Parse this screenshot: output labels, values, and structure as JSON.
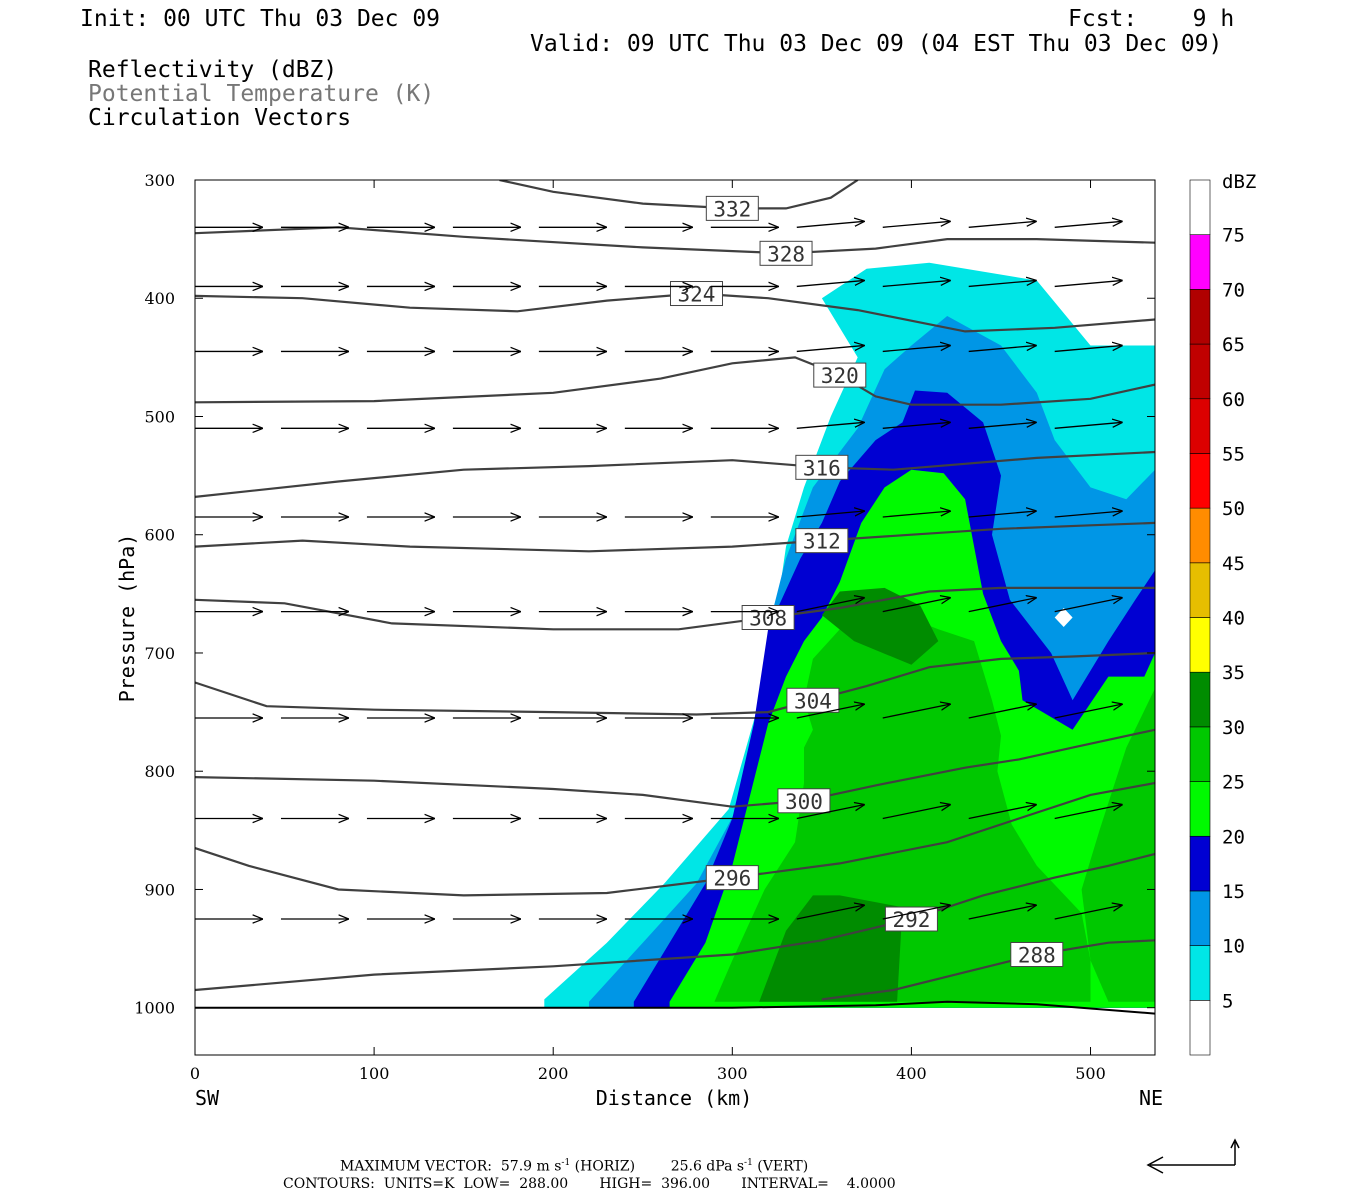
{
  "header": {
    "init": "Init: 00 UTC Thu 03 Dec 09",
    "fcst": "Fcst:    9 h",
    "valid": "Valid: 09 UTC Thu 03 Dec 09 (04 EST Thu 03 Dec 09)",
    "field1": "Reflectivity (dBZ)",
    "field2": "Potential Temperature (K)",
    "field3": "Circulation Vectors"
  },
  "footer": {
    "line1_a": "MAXIMUM VECTOR:  57.9 m s",
    "line1_b": "(HORIZ)",
    "line1_c": "25.6 dPa s",
    "line1_d": "(VERT)",
    "line1_exp": "-1",
    "line2": "CONTOURS:  UNITS=K  LOW=  288.00       HIGH=  396.00       INTERVAL=    4.0000"
  },
  "colors": {
    "c5": "#00e6e6",
    "c10": "#0096e6",
    "c15": "#0000d2",
    "c20": "#00fa00",
    "c25": "#00c800",
    "c30": "#008c00",
    "c35": "#ffff00",
    "c40": "#e6be00",
    "c45": "#ff8c00",
    "c50": "#ff0000",
    "c55": "#dc0000",
    "c60": "#c00000",
    "c65": "#b00000",
    "c70": "#ff00ff",
    "c75": "#9b59c7",
    "theta_line": "#404040",
    "vector": "#000000"
  },
  "chart_data": {
    "type": "heatmap",
    "title": "",
    "xlabel": "Distance (km)",
    "ylabel": "Pressure (hPa)",
    "xlim": [
      0,
      536
    ],
    "ylim": [
      1040,
      300
    ],
    "x_ticks": [
      0,
      100,
      200,
      300,
      400,
      500
    ],
    "y_ticks": [
      300,
      400,
      500,
      600,
      700,
      800,
      900,
      1000
    ],
    "x_end_labels": {
      "left": "SW",
      "right": "NE"
    },
    "colorbar": {
      "unit": "dBZ",
      "levels": [
        5,
        10,
        15,
        20,
        25,
        30,
        35,
        40,
        45,
        50,
        55,
        60,
        65,
        70,
        75
      ]
    },
    "reflectivity_regions": [
      {
        "dbz": 5,
        "polygon": [
          [
            195,
            993
          ],
          [
            230,
            945
          ],
          [
            262,
            895
          ],
          [
            298,
            832
          ],
          [
            318,
            725
          ],
          [
            325,
            662
          ],
          [
            330,
            610
          ],
          [
            340,
            560
          ],
          [
            355,
            500
          ],
          [
            370,
            450
          ],
          [
            350,
            400
          ],
          [
            375,
            375
          ],
          [
            410,
            370
          ],
          [
            470,
            385
          ],
          [
            500,
            440
          ],
          [
            536,
            440
          ],
          [
            536,
            1000
          ],
          [
            195,
            1000
          ]
        ]
      },
      {
        "dbz": 10,
        "polygon": [
          [
            220,
            995
          ],
          [
            250,
            945
          ],
          [
            280,
            895
          ],
          [
            305,
            825
          ],
          [
            318,
            740
          ],
          [
            320,
            680
          ],
          [
            330,
            620
          ],
          [
            345,
            560
          ],
          [
            370,
            510
          ],
          [
            385,
            460
          ],
          [
            400,
            440
          ],
          [
            420,
            415
          ],
          [
            450,
            440
          ],
          [
            470,
            480
          ],
          [
            480,
            520
          ],
          [
            500,
            560
          ],
          [
            520,
            570
          ],
          [
            536,
            545
          ],
          [
            536,
            1000
          ],
          [
            220,
            1000
          ]
        ]
      },
      {
        "dbz": 10,
        "polygon": [
          [
            495,
            680
          ],
          [
            478,
            635
          ],
          [
            470,
            605
          ],
          [
            490,
            590
          ],
          [
            510,
            600
          ],
          [
            518,
            620
          ],
          [
            510,
            660
          ]
        ]
      },
      {
        "dbz": 15,
        "polygon": [
          [
            245,
            995
          ],
          [
            265,
            945
          ],
          [
            285,
            895
          ],
          [
            300,
            840
          ],
          [
            312,
            760
          ],
          [
            320,
            680
          ],
          [
            338,
            620
          ],
          [
            350,
            590
          ],
          [
            360,
            555
          ],
          [
            380,
            520
          ],
          [
            395,
            505
          ],
          [
            402,
            478
          ],
          [
            420,
            480
          ],
          [
            440,
            505
          ],
          [
            450,
            550
          ],
          [
            445,
            600
          ],
          [
            455,
            655
          ],
          [
            478,
            700
          ],
          [
            490,
            740
          ],
          [
            510,
            690
          ],
          [
            525,
            655
          ],
          [
            536,
            630
          ],
          [
            536,
            1000
          ],
          [
            245,
            1000
          ]
        ]
      },
      {
        "dbz": 20,
        "polygon": [
          [
            265,
            995
          ],
          [
            285,
            945
          ],
          [
            300,
            880
          ],
          [
            310,
            820
          ],
          [
            320,
            760
          ],
          [
            330,
            720
          ],
          [
            340,
            690
          ],
          [
            350,
            670
          ],
          [
            360,
            640
          ],
          [
            372,
            590
          ],
          [
            385,
            560
          ],
          [
            400,
            545
          ],
          [
            418,
            548
          ],
          [
            430,
            570
          ],
          [
            440,
            650
          ],
          [
            450,
            690
          ],
          [
            460,
            715
          ],
          [
            462,
            740
          ],
          [
            490,
            765
          ],
          [
            510,
            720
          ],
          [
            530,
            720
          ],
          [
            536,
            700
          ],
          [
            536,
            1000
          ],
          [
            265,
            1000
          ]
        ]
      },
      {
        "dbz": 25,
        "polygon": [
          [
            290,
            995
          ],
          [
            300,
            960
          ],
          [
            318,
            900
          ],
          [
            335,
            860
          ],
          [
            340,
            810
          ],
          [
            340,
            780
          ],
          [
            345,
            765
          ],
          [
            340,
            740
          ],
          [
            345,
            705
          ],
          [
            360,
            680
          ],
          [
            375,
            662
          ],
          [
            395,
            668
          ],
          [
            415,
            680
          ],
          [
            435,
            690
          ],
          [
            440,
            715
          ],
          [
            445,
            740
          ],
          [
            450,
            770
          ],
          [
            448,
            800
          ],
          [
            456,
            845
          ],
          [
            470,
            880
          ],
          [
            495,
            920
          ],
          [
            500,
            960
          ],
          [
            500,
            995
          ],
          [
            290,
            995
          ]
        ]
      },
      {
        "dbz": 25,
        "polygon": [
          [
            536,
            730
          ],
          [
            520,
            780
          ],
          [
            505,
            850
          ],
          [
            495,
            900
          ],
          [
            500,
            960
          ],
          [
            510,
            995
          ],
          [
            536,
            995
          ]
        ]
      },
      {
        "dbz": 30,
        "polygon": [
          [
            315,
            995
          ],
          [
            330,
            935
          ],
          [
            345,
            905
          ],
          [
            360,
            905
          ],
          [
            395,
            915
          ],
          [
            392,
            995
          ]
        ]
      },
      {
        "dbz": 30,
        "polygon": [
          [
            368,
            690
          ],
          [
            350,
            668
          ],
          [
            360,
            648
          ],
          [
            385,
            645
          ],
          [
            405,
            660
          ],
          [
            415,
            690
          ],
          [
            400,
            710
          ]
        ]
      },
      {
        "dbz": 0,
        "polygon": [
          [
            485,
            662
          ],
          [
            490,
            670
          ],
          [
            485,
            678
          ],
          [
            480,
            670
          ]
        ]
      }
    ],
    "theta_contours": [
      {
        "level": 332,
        "points": [
          [
            170,
            300
          ],
          [
            200,
            310
          ],
          [
            250,
            320
          ],
          [
            300,
            324
          ],
          [
            330,
            324
          ],
          [
            355,
            315
          ],
          [
            370,
            300
          ]
        ]
      },
      {
        "level": 328,
        "points": [
          [
            0,
            345
          ],
          [
            80,
            340
          ],
          [
            150,
            348
          ],
          [
            250,
            357
          ],
          [
            330,
            362
          ],
          [
            380,
            358
          ],
          [
            420,
            350
          ],
          [
            470,
            350
          ],
          [
            536,
            353
          ]
        ]
      },
      {
        "level": 324,
        "points": [
          [
            0,
            398
          ],
          [
            60,
            400
          ],
          [
            120,
            408
          ],
          [
            180,
            411
          ],
          [
            230,
            402
          ],
          [
            280,
            396
          ],
          [
            320,
            400
          ],
          [
            370,
            410
          ],
          [
            430,
            428
          ],
          [
            480,
            425
          ],
          [
            536,
            418
          ]
        ]
      },
      {
        "level": 320,
        "points": [
          [
            0,
            488
          ],
          [
            100,
            487
          ],
          [
            200,
            480
          ],
          [
            260,
            468
          ],
          [
            300,
            455
          ],
          [
            335,
            450
          ],
          [
            360,
            465
          ],
          [
            380,
            483
          ],
          [
            400,
            490
          ],
          [
            450,
            490
          ],
          [
            500,
            485
          ],
          [
            536,
            473
          ]
        ]
      },
      {
        "level": 316,
        "points": [
          [
            0,
            568
          ],
          [
            80,
            555
          ],
          [
            150,
            545
          ],
          [
            220,
            542
          ],
          [
            300,
            537
          ],
          [
            350,
            543
          ],
          [
            390,
            545
          ],
          [
            430,
            540
          ],
          [
            470,
            535
          ],
          [
            510,
            532
          ],
          [
            536,
            530
          ]
        ]
      },
      {
        "level": 312,
        "points": [
          [
            0,
            610
          ],
          [
            60,
            605
          ],
          [
            120,
            610
          ],
          [
            220,
            614
          ],
          [
            300,
            610
          ],
          [
            350,
            605
          ],
          [
            400,
            600
          ],
          [
            450,
            595
          ],
          [
            500,
            592
          ],
          [
            536,
            590
          ]
        ]
      },
      {
        "level": 308,
        "points": [
          [
            0,
            655
          ],
          [
            50,
            658
          ],
          [
            110,
            675
          ],
          [
            200,
            680
          ],
          [
            270,
            680
          ],
          [
            320,
            670
          ],
          [
            360,
            662
          ],
          [
            410,
            648
          ],
          [
            450,
            645
          ],
          [
            490,
            645
          ],
          [
            536,
            645
          ]
        ]
      },
      {
        "level": 304,
        "points": [
          [
            0,
            725
          ],
          [
            40,
            745
          ],
          [
            100,
            748
          ],
          [
            200,
            750
          ],
          [
            280,
            752
          ],
          [
            320,
            750
          ],
          [
            345,
            740
          ],
          [
            375,
            728
          ],
          [
            410,
            712
          ],
          [
            450,
            705
          ],
          [
            490,
            703
          ],
          [
            536,
            700
          ]
        ]
      },
      {
        "level": 300,
        "points": [
          [
            0,
            805
          ],
          [
            100,
            808
          ],
          [
            200,
            815
          ],
          [
            250,
            820
          ],
          [
            300,
            830
          ],
          [
            340,
            825
          ],
          [
            380,
            812
          ],
          [
            430,
            797
          ],
          [
            460,
            790
          ],
          [
            490,
            780
          ],
          [
            536,
            765
          ]
        ]
      },
      {
        "level": 296,
        "points": [
          [
            0,
            865
          ],
          [
            30,
            880
          ],
          [
            80,
            900
          ],
          [
            150,
            905
          ],
          [
            230,
            903
          ],
          [
            300,
            890
          ],
          [
            360,
            878
          ],
          [
            420,
            860
          ],
          [
            460,
            840
          ],
          [
            500,
            820
          ],
          [
            536,
            810
          ]
        ]
      },
      {
        "level": 292,
        "points": [
          [
            0,
            985
          ],
          [
            100,
            972
          ],
          [
            200,
            965
          ],
          [
            300,
            955
          ],
          [
            350,
            943
          ],
          [
            400,
            925
          ],
          [
            440,
            905
          ],
          [
            480,
            890
          ],
          [
            510,
            880
          ],
          [
            536,
            870
          ]
        ]
      },
      {
        "level": 288,
        "points": [
          [
            350,
            993
          ],
          [
            390,
            985
          ],
          [
            430,
            970
          ],
          [
            470,
            955
          ],
          [
            510,
            945
          ],
          [
            536,
            943
          ]
        ]
      }
    ],
    "terrain_pressure": [
      [
        0,
        1000
      ],
      [
        300,
        1000
      ],
      [
        380,
        998
      ],
      [
        420,
        995
      ],
      [
        470,
        997
      ],
      [
        536,
        1005
      ]
    ]
  }
}
